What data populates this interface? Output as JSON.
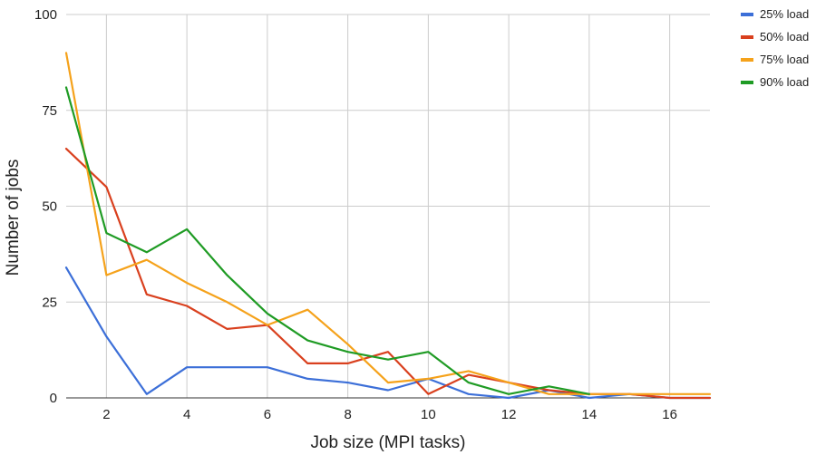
{
  "chart_data": {
    "type": "line",
    "title": "",
    "xlabel": "Job size (MPI tasks)",
    "ylabel": "Number of jobs",
    "x": [
      1,
      2,
      3,
      4,
      5,
      6,
      7,
      8,
      9,
      10,
      11,
      12,
      13,
      14,
      15,
      16,
      17
    ],
    "xlim": [
      1,
      17
    ],
    "ylim": [
      0,
      100
    ],
    "x_ticks": [
      2,
      4,
      6,
      8,
      10,
      12,
      14,
      16
    ],
    "y_ticks": [
      0,
      25,
      50,
      75,
      100
    ],
    "grid": true,
    "legend_position": "top-right",
    "series": [
      {
        "name": "25% load",
        "color": "#3c6fd8",
        "values": [
          34,
          16,
          1,
          8,
          8,
          8,
          5,
          4,
          2,
          5,
          1,
          0,
          2,
          0,
          1,
          0,
          0
        ]
      },
      {
        "name": "50% load",
        "color": "#d9401e",
        "values": [
          65,
          55,
          27,
          24,
          18,
          19,
          9,
          9,
          12,
          1,
          6,
          4,
          2,
          1,
          1,
          0,
          0
        ]
      },
      {
        "name": "75% load",
        "color": "#f5a21b",
        "values": [
          90,
          32,
          36,
          30,
          25,
          19,
          23,
          14,
          4,
          5,
          7,
          4,
          1,
          1,
          1,
          1,
          1
        ]
      },
      {
        "name": "90% load",
        "color": "#1f9b24",
        "values": [
          81,
          43,
          38,
          44,
          32,
          22,
          15,
          12,
          10,
          12,
          4,
          1,
          3,
          1,
          null,
          null,
          null
        ]
      }
    ]
  }
}
